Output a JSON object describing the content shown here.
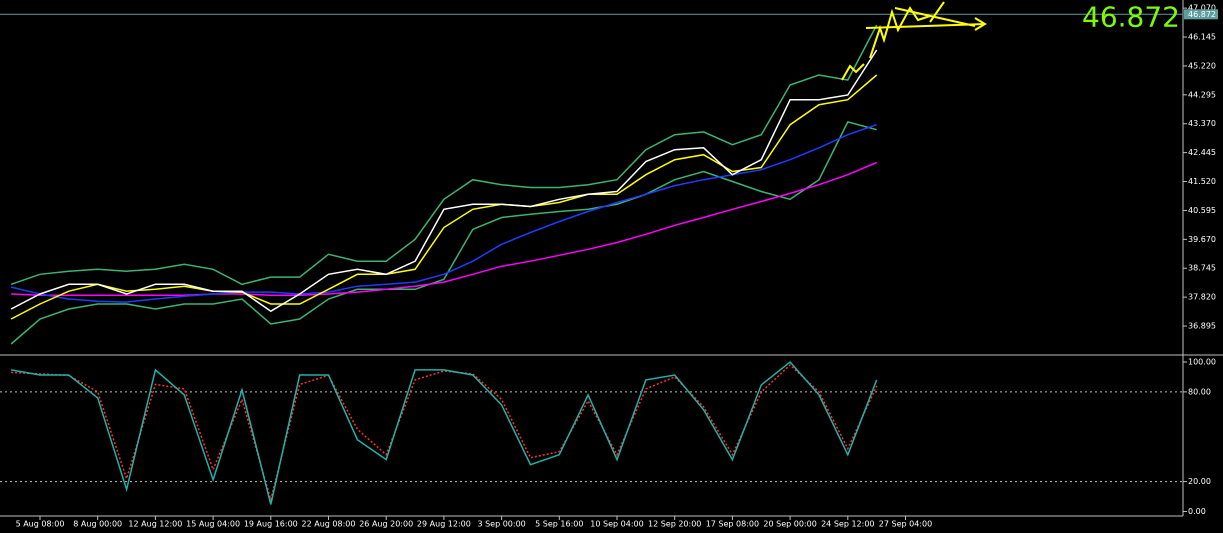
{
  "chart_data": [
    {
      "type": "line",
      "last_price": 46.872,
      "price_line_color": "#5f9ea0",
      "label_color": "#7cfc00",
      "categories": [
        null,
        "5 Aug 08:00",
        null,
        "8 Aug 00:00",
        null,
        "12 Aug 12:00",
        null,
        "15 Aug 04:00",
        null,
        "19 Aug 16:00",
        null,
        "22 Aug 08:00",
        null,
        "26 Aug 20:00",
        null,
        "29 Aug 12:00",
        null,
        "3 Sep 00:00",
        null,
        "5 Sep 16:00",
        null,
        "10 Sep 04:00",
        null,
        "12 Sep 20:00",
        null,
        "17 Sep 08:00",
        null,
        "20 Sep 00:00",
        null,
        "24 Sep 12:00",
        null,
        "27 Sep 04:00"
      ],
      "ylim": [
        36.0,
        47.33
      ],
      "yticks": [
        36.895,
        {
          "value": 37.82,
          "label": "37.820"
        },
        38.745,
        {
          "value": 39.67,
          "label": "39.670"
        },
        40.595,
        {
          "value": 41.52,
          "label": "41.520"
        },
        42.445,
        {
          "value": 43.37,
          "label": "43.370"
        },
        44.295,
        {
          "value": 45.22,
          "label": "45.220"
        },
        46.145,
        {
          "value": 47.07,
          "label": "47.070"
        }
      ],
      "series": [
        {
          "color": "#3cb371",
          "values": [
            38.23,
            38.55,
            38.65,
            38.71,
            38.65,
            38.71,
            38.87,
            38.71,
            38.23,
            38.46,
            38.46,
            39.19,
            38.97,
            38.97,
            39.67,
            40.95,
            41.58,
            41.42,
            41.33,
            41.33,
            41.42,
            41.58,
            42.54,
            43.02,
            43.11,
            42.7,
            43.02,
            44.61,
            44.93,
            44.77,
            46.53,
            null
          ]
        },
        {
          "color": "#3cb371",
          "values": [
            36.32,
            37.12,
            37.44,
            37.6,
            37.6,
            37.44,
            37.6,
            37.6,
            37.76,
            36.96,
            37.12,
            37.76,
            38.07,
            38.07,
            38.07,
            38.39,
            39.99,
            40.37,
            40.47,
            40.56,
            40.63,
            40.79,
            41.11,
            41.58,
            41.84,
            41.52,
            41.2,
            40.95,
            41.58,
            43.43,
            43.18,
            null
          ]
        },
        {
          "color": "#ff00ff",
          "values": [
            37.92,
            37.88,
            37.88,
            37.88,
            37.88,
            37.88,
            37.88,
            37.92,
            37.92,
            37.88,
            37.88,
            37.92,
            37.98,
            38.07,
            38.17,
            38.3,
            38.55,
            38.81,
            38.97,
            39.16,
            39.35,
            39.57,
            39.83,
            40.12,
            40.37,
            40.63,
            40.88,
            41.14,
            41.42,
            41.74,
            42.13,
            null
          ]
        },
        {
          "color": "#1e3cff",
          "values": [
            38.14,
            37.92,
            37.76,
            37.69,
            37.66,
            37.76,
            37.85,
            37.92,
            37.98,
            37.98,
            37.92,
            37.98,
            38.17,
            38.23,
            38.3,
            38.55,
            38.97,
            39.51,
            39.89,
            40.24,
            40.56,
            40.85,
            41.11,
            41.39,
            41.58,
            41.74,
            41.9,
            42.22,
            42.6,
            43.02,
            43.34,
            null
          ]
        },
        {
          "color": "#ffff00",
          "values": [
            37.12,
            37.6,
            38.01,
            38.23,
            38.01,
            38.07,
            38.17,
            38.01,
            37.98,
            37.6,
            37.6,
            38.07,
            38.55,
            38.55,
            38.71,
            40.05,
            40.63,
            40.79,
            40.72,
            40.85,
            41.11,
            41.11,
            41.74,
            42.22,
            42.38,
            41.84,
            41.97,
            43.34,
            43.98,
            44.14,
            44.93,
            null
          ]
        },
        {
          "color": "#ffffff",
          "values": [
            37.44,
            37.92,
            38.23,
            38.23,
            37.92,
            38.23,
            38.23,
            38.01,
            38.01,
            37.37,
            37.92,
            38.55,
            38.71,
            38.55,
            38.97,
            40.63,
            40.79,
            40.79,
            40.72,
            40.95,
            41.11,
            41.2,
            42.16,
            42.54,
            42.6,
            41.74,
            42.22,
            44.14,
            44.14,
            44.29,
            45.73,
            null
          ]
        }
      ]
    },
    {
      "type": "line",
      "ylim": [
        -3,
        104
      ],
      "yticks": [
        {
          "value": 0,
          "label": "0.00"
        },
        {
          "value": 20,
          "label": "20.00"
        },
        {
          "value": 80,
          "label": "80.00"
        },
        {
          "value": 100,
          "label": "100.00"
        }
      ],
      "levels": [
        20,
        80
      ],
      "series": [
        {
          "color": "#ff3030",
          "dashed": true,
          "values": [
            93,
            92,
            91,
            80,
            22,
            85,
            82,
            28,
            75,
            8,
            85,
            91,
            55,
            38,
            88,
            94,
            92,
            75,
            36,
            40,
            74,
            38,
            82,
            90,
            70,
            38,
            80,
            98,
            80,
            42,
            84,
            null
          ]
        },
        {
          "color": "#20b2aa",
          "values": [
            94.7,
            91.3,
            91.3,
            76,
            14.7,
            94.7,
            78,
            21.3,
            81.3,
            4.7,
            91.3,
            91.3,
            48,
            34.7,
            94.7,
            94.7,
            91.3,
            71.3,
            31.3,
            38,
            78,
            34.7,
            88,
            91.3,
            68,
            34.7,
            84.7,
            100,
            78,
            38,
            88,
            null
          ]
        }
      ]
    }
  ]
}
